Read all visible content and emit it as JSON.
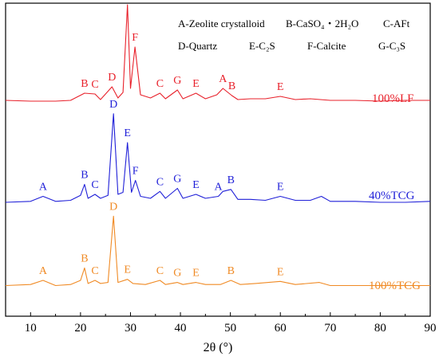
{
  "chart_data": {
    "type": "line",
    "xlabel": "2θ (°)",
    "xlim": [
      5,
      90
    ],
    "xticks": [
      10,
      20,
      30,
      40,
      50,
      60,
      70,
      80,
      90
    ],
    "grid": false,
    "legend": {
      "placement": "top",
      "line1": [
        "A-Zeolite crystalloid",
        "B-CaSO₄・2H₂O",
        "C-AFt"
      ],
      "line2": [
        "D-Quartz",
        "E-C₂S",
        "F-Calcite",
        "G-C₃S"
      ]
    },
    "series": [
      {
        "name": "100%LF",
        "color": "#e8202a",
        "x": [
          5,
          10,
          15,
          18,
          20.8,
          22.9,
          24,
          26.3,
          27.5,
          28.5,
          29.4,
          30,
          30.9,
          32,
          34,
          35.9,
          37,
          39.4,
          40.5,
          43.1,
          45,
          47.3,
          48.5,
          50.3,
          51.5,
          54,
          57,
          60,
          63,
          66,
          70,
          75,
          80,
          85,
          90
        ],
        "y": [
          0.05,
          0.04,
          0.04,
          0.05,
          0.14,
          0.13,
          0.06,
          0.22,
          0.08,
          0.15,
          1.25,
          0.2,
          0.72,
          0.12,
          0.08,
          0.14,
          0.07,
          0.18,
          0.07,
          0.14,
          0.07,
          0.12,
          0.2,
          0.11,
          0.06,
          0.07,
          0.07,
          0.1,
          0.06,
          0.07,
          0.05,
          0.05,
          0.04,
          0.05,
          0.05
        ],
        "peaks": [
          {
            "label": "B",
            "x": 20.8
          },
          {
            "label": "C",
            "x": 22.9
          },
          {
            "label": "D",
            "x": 26.3
          },
          {
            "label": "E",
            "x": 29.4
          },
          {
            "label": "F",
            "x": 30.9
          },
          {
            "label": "C",
            "x": 35.9
          },
          {
            "label": "G",
            "x": 39.4
          },
          {
            "label": "E",
            "x": 43.1
          },
          {
            "label": "A",
            "x": 48.5
          },
          {
            "label": "B",
            "x": 50.3
          },
          {
            "label": "E",
            "x": 60.0
          }
        ]
      },
      {
        "name": "40%TCG",
        "color": "#1f1fd8",
        "x": [
          5,
          10,
          12.5,
          15,
          18,
          20.0,
          20.8,
          21.5,
          22.9,
          24,
          25.5,
          26.6,
          27.5,
          28.5,
          29.4,
          30.2,
          31.0,
          32,
          34,
          35.9,
          37,
          39.4,
          40.5,
          43.1,
          45,
          47.6,
          48.5,
          50.1,
          51.5,
          54,
          57,
          60,
          63,
          66,
          68.2,
          70,
          75,
          80,
          85,
          90
        ],
        "y": [
          0.04,
          0.05,
          0.1,
          0.05,
          0.06,
          0.11,
          0.22,
          0.08,
          0.12,
          0.08,
          0.11,
          0.93,
          0.12,
          0.14,
          0.64,
          0.14,
          0.26,
          0.1,
          0.08,
          0.15,
          0.08,
          0.18,
          0.08,
          0.12,
          0.08,
          0.1,
          0.15,
          0.17,
          0.07,
          0.07,
          0.06,
          0.1,
          0.06,
          0.06,
          0.1,
          0.05,
          0.05,
          0.04,
          0.04,
          0.05
        ],
        "peaks": [
          {
            "label": "A",
            "x": 12.5
          },
          {
            "label": "B",
            "x": 20.8
          },
          {
            "label": "C",
            "x": 22.9
          },
          {
            "label": "D",
            "x": 26.6
          },
          {
            "label": "E",
            "x": 29.4
          },
          {
            "label": "F",
            "x": 31.0
          },
          {
            "label": "C",
            "x": 35.9
          },
          {
            "label": "G",
            "x": 39.4
          },
          {
            "label": "E",
            "x": 43.1
          },
          {
            "label": "A",
            "x": 47.6
          },
          {
            "label": "B",
            "x": 50.1
          },
          {
            "label": "E",
            "x": 60.0
          }
        ]
      },
      {
        "name": "100%TCG",
        "color": "#f08a24",
        "x": [
          5,
          10,
          12.5,
          15,
          18,
          20.0,
          20.8,
          21.5,
          22.9,
          24,
          25.5,
          26.6,
          27.5,
          29.4,
          30.5,
          33,
          35.9,
          37,
          39.4,
          40.5,
          43.1,
          45,
          48,
          50.1,
          52,
          55,
          60,
          63,
          67.8,
          70,
          75,
          80,
          85,
          90
        ],
        "y": [
          0.05,
          0.06,
          0.1,
          0.05,
          0.06,
          0.1,
          0.22,
          0.07,
          0.1,
          0.07,
          0.08,
          0.72,
          0.08,
          0.11,
          0.07,
          0.06,
          0.1,
          0.06,
          0.08,
          0.06,
          0.08,
          0.06,
          0.06,
          0.1,
          0.06,
          0.07,
          0.09,
          0.06,
          0.08,
          0.05,
          0.05,
          0.05,
          0.05,
          0.05
        ],
        "peaks": [
          {
            "label": "A",
            "x": 12.5
          },
          {
            "label": "B",
            "x": 20.8
          },
          {
            "label": "C",
            "x": 22.9
          },
          {
            "label": "D",
            "x": 26.6
          },
          {
            "label": "E",
            "x": 29.4
          },
          {
            "label": "C",
            "x": 35.9
          },
          {
            "label": "G",
            "x": 39.4
          },
          {
            "label": "E",
            "x": 43.1
          },
          {
            "label": "B",
            "x": 50.1
          },
          {
            "label": "E",
            "x": 60.0
          }
        ]
      }
    ]
  }
}
